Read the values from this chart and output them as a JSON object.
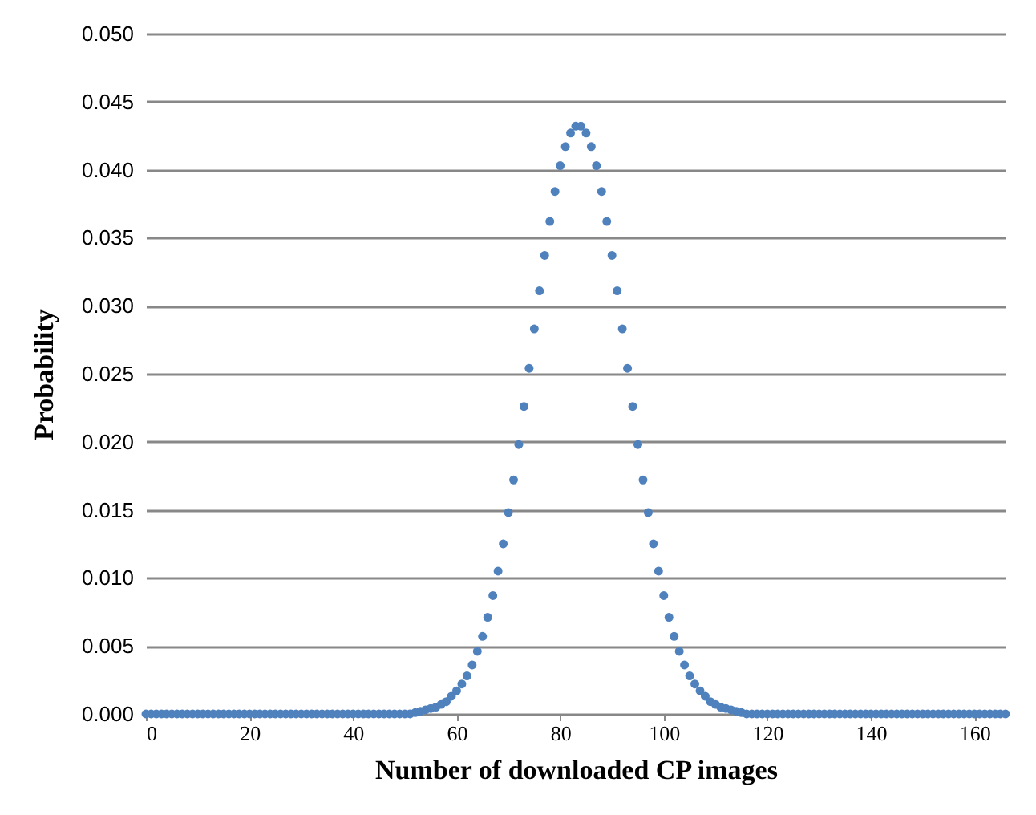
{
  "chart_data": {
    "type": "scatter",
    "xlabel": "Number of downloaded CP images",
    "ylabel": "Probability",
    "x": [
      0,
      1,
      2,
      3,
      4,
      5,
      6,
      7,
      8,
      9,
      10,
      11,
      12,
      13,
      14,
      15,
      16,
      17,
      18,
      19,
      20,
      21,
      22,
      23,
      24,
      25,
      26,
      27,
      28,
      29,
      30,
      31,
      32,
      33,
      34,
      35,
      36,
      37,
      38,
      39,
      40,
      41,
      42,
      43,
      44,
      45,
      46,
      47,
      48,
      49,
      50,
      51,
      52,
      53,
      54,
      55,
      56,
      57,
      58,
      59,
      60,
      61,
      62,
      63,
      64,
      65,
      66,
      67,
      68,
      69,
      70,
      71,
      72,
      73,
      74,
      75,
      76,
      77,
      78,
      79,
      80,
      81,
      82,
      83,
      84,
      85,
      86,
      87,
      88,
      89,
      90,
      91,
      92,
      93,
      94,
      95,
      96,
      97,
      98,
      99,
      100,
      101,
      102,
      103,
      104,
      105,
      106,
      107,
      108,
      109,
      110,
      111,
      112,
      113,
      114,
      115,
      116,
      117,
      118,
      119,
      120,
      121,
      122,
      123,
      124,
      125,
      126,
      127,
      128,
      129,
      130,
      131,
      132,
      133,
      134,
      135,
      136,
      137,
      138,
      139,
      140,
      141,
      142,
      143,
      144,
      145,
      146,
      147,
      148,
      149,
      150,
      151,
      152,
      153,
      154,
      155,
      156,
      157,
      158,
      159,
      160,
      161,
      162,
      163,
      164,
      165,
      166
    ],
    "series": [
      {
        "color": "#4f81bd",
        "values": [
          0,
          0,
          0,
          0,
          0,
          0,
          0,
          0,
          0,
          0,
          0,
          0,
          0,
          0,
          0,
          0,
          0,
          0,
          0,
          0,
          0,
          0,
          0,
          0,
          0,
          0,
          0,
          0,
          0,
          0,
          0,
          0,
          0,
          0,
          0,
          0,
          0,
          0,
          0,
          0,
          0,
          0,
          0,
          0,
          0,
          0,
          0,
          0,
          0,
          0,
          0,
          0,
          0.0001,
          0.0002,
          0.0003,
          0.0004,
          0.0005,
          0.0007,
          0.0009,
          0.0013,
          0.0017,
          0.0022,
          0.0028,
          0.0036,
          0.0046,
          0.0057,
          0.0071,
          0.0087,
          0.0105,
          0.0125,
          0.0148,
          0.0172,
          0.0198,
          0.0226,
          0.0254,
          0.0283,
          0.0311,
          0.0337,
          0.0362,
          0.0384,
          0.0403,
          0.0417,
          0.0427,
          0.0432,
          0.0432,
          0.0427,
          0.0417,
          0.0403,
          0.0384,
          0.0362,
          0.0337,
          0.0311,
          0.0283,
          0.0254,
          0.0226,
          0.0198,
          0.0172,
          0.0148,
          0.0125,
          0.0105,
          0.0087,
          0.0071,
          0.0057,
          0.0046,
          0.0036,
          0.0028,
          0.0022,
          0.0017,
          0.0013,
          0.0009,
          0.0007,
          0.0005,
          0.0004,
          0.0003,
          0.0002,
          0.0001,
          0,
          0,
          0,
          0,
          0,
          0,
          0,
          0,
          0,
          0,
          0,
          0,
          0,
          0,
          0,
          0,
          0,
          0,
          0,
          0,
          0,
          0,
          0,
          0,
          0,
          0,
          0,
          0,
          0,
          0,
          0,
          0,
          0,
          0,
          0,
          0,
          0,
          0,
          0,
          0,
          0,
          0,
          0,
          0,
          0,
          0,
          0,
          0,
          0,
          0,
          0
        ]
      }
    ],
    "xlim": [
      0,
      166
    ],
    "xticks": [
      0,
      20,
      40,
      60,
      80,
      100,
      120,
      140,
      160
    ],
    "ylim": [
      0,
      0.05
    ],
    "yticks": [
      {
        "value": 0,
        "label": "0.000"
      },
      {
        "value": 0.005,
        "label": "0.005"
      },
      {
        "value": 0.01,
        "label": "0.010"
      },
      {
        "value": 0.015,
        "label": "0.015"
      },
      {
        "value": 0.02,
        "label": "0.020"
      },
      {
        "value": 0.025,
        "label": "0.025"
      },
      {
        "value": 0.03,
        "label": "0.030"
      },
      {
        "value": 0.035,
        "label": "0.035"
      },
      {
        "value": 0.04,
        "label": "0.040"
      },
      {
        "value": 0.045,
        "label": "0.045"
      },
      {
        "value": 0.05,
        "label": "0.050"
      }
    ],
    "grid": "y",
    "marker": "circle"
  }
}
